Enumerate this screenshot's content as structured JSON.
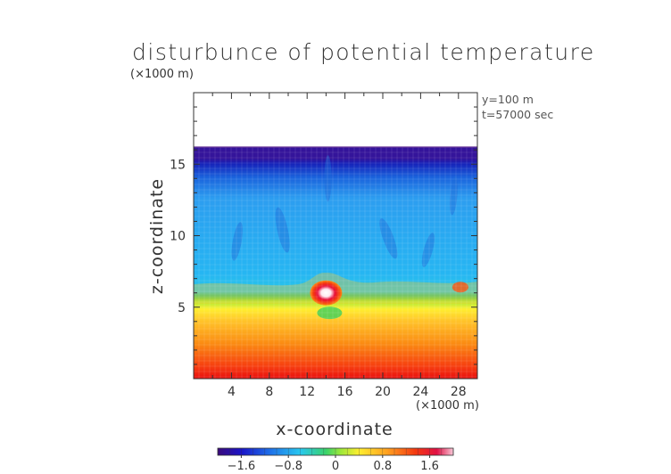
{
  "chart_data": {
    "type": "heatmap",
    "title": "disturbunce of potential temperature",
    "xlabel": "x-coordinate",
    "ylabel": "z-coordinate",
    "x_unit": "(×1000 m)",
    "z_unit": "(×1000 m)",
    "annotations": [
      "y=100 m",
      "t=57000 sec"
    ],
    "xlim": [
      0,
      30
    ],
    "ylim": [
      0,
      20
    ],
    "x_ticks": [
      4,
      8,
      12,
      16,
      20,
      24,
      28
    ],
    "y_ticks": [
      5,
      10,
      15
    ],
    "domain_top": 16.2,
    "colorbar": {
      "min": -2.0,
      "max": 2.0,
      "tick_values": [
        -1.6,
        -0.8,
        0,
        0.8,
        1.6
      ],
      "tick_labels": [
        "−1.6",
        "−0.8",
        "0",
        "0.8",
        "1.6"
      ]
    },
    "approx_layers": [
      {
        "z_range": [
          0,
          1
        ],
        "value": 1.7
      },
      {
        "z_range": [
          1,
          3
        ],
        "value": 1.3
      },
      {
        "z_range": [
          3,
          5
        ],
        "value": 0.9
      },
      {
        "z_range": [
          5,
          6
        ],
        "value": 0.6
      },
      {
        "z_range": [
          6,
          7
        ],
        "value": 0.2
      },
      {
        "z_range": [
          7,
          15
        ],
        "value": -0.6
      },
      {
        "z_range": [
          15,
          16.2
        ],
        "value": -1.4
      }
    ],
    "features": [
      {
        "kind": "warm bubble",
        "x": 14,
        "z": 6.0,
        "peak_value": 2.0
      },
      {
        "kind": "cold streak",
        "x": 14,
        "z": 14.5,
        "value": -1.0
      }
    ]
  }
}
